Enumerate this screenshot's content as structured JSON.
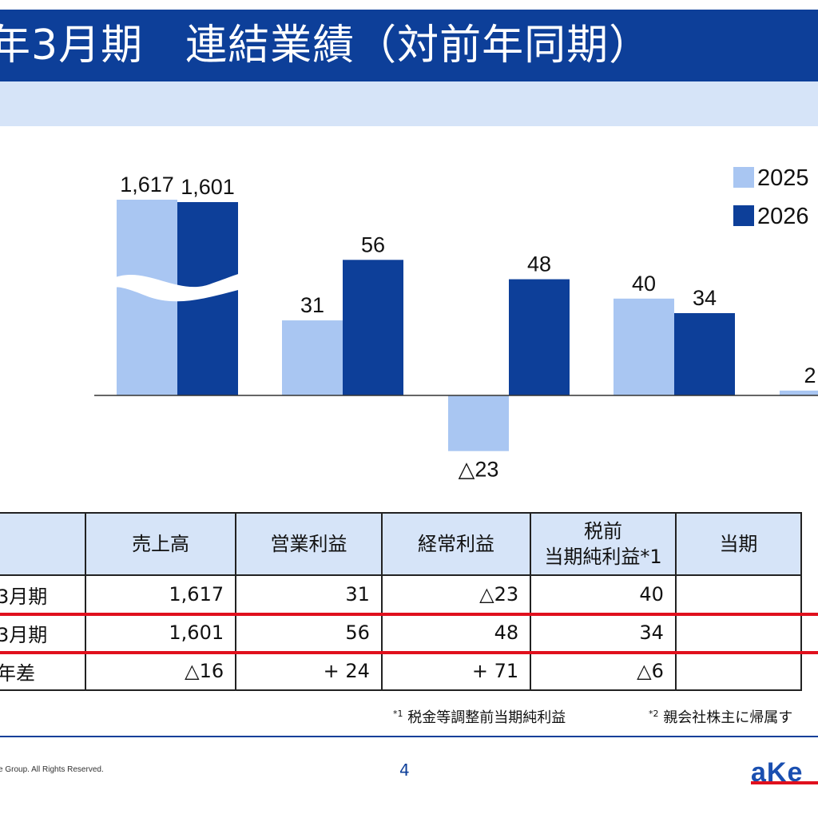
{
  "header": {
    "title": "年3月期　連結業績（対前年同期）"
  },
  "chart_data": {
    "type": "bar",
    "categories": [
      "売上高",
      "営業利益",
      "経常利益",
      "税前当期純利益",
      "当期"
    ],
    "series": [
      {
        "name": "2025",
        "values": [
          1617,
          31,
          -23,
          40,
          2
        ]
      },
      {
        "name": "2026",
        "values": [
          1601,
          56,
          48,
          34,
          null
        ]
      }
    ],
    "data_labels": [
      [
        "1,617",
        "31",
        "△23",
        "40",
        "2"
      ],
      [
        "1,601",
        "56",
        "48",
        "34",
        ""
      ]
    ],
    "axis_break": true,
    "colors": {
      "2025": "#a9c6f2",
      "2026": "#0d3f99"
    },
    "legend_position": "top-right",
    "grid": false
  },
  "table": {
    "headers": [
      "",
      "売上高",
      "営業利益",
      "経常利益",
      "税前",
      "当期純利益*1",
      "当期"
    ],
    "header_sup": "*1",
    "rows": [
      {
        "label": "3月期",
        "cells": [
          "1,617",
          "31",
          "△23",
          "40",
          ""
        ]
      },
      {
        "label": "3月期",
        "cells": [
          "1,601",
          "56",
          "48",
          "34",
          ""
        ]
      },
      {
        "label": "年差",
        "cells": [
          "△16",
          "+ 24",
          "+ 71",
          "△6",
          ""
        ]
      }
    ]
  },
  "footnotes": [
    {
      "mark": "*1",
      "text": "税金等調整前当期純利益"
    },
    {
      "mark": "*2",
      "text": "親会社株主に帰属す"
    }
  ],
  "footer": {
    "copyright": "e Group. All Rights Reserved.",
    "page_number": "4",
    "logo_text": "aKe"
  }
}
